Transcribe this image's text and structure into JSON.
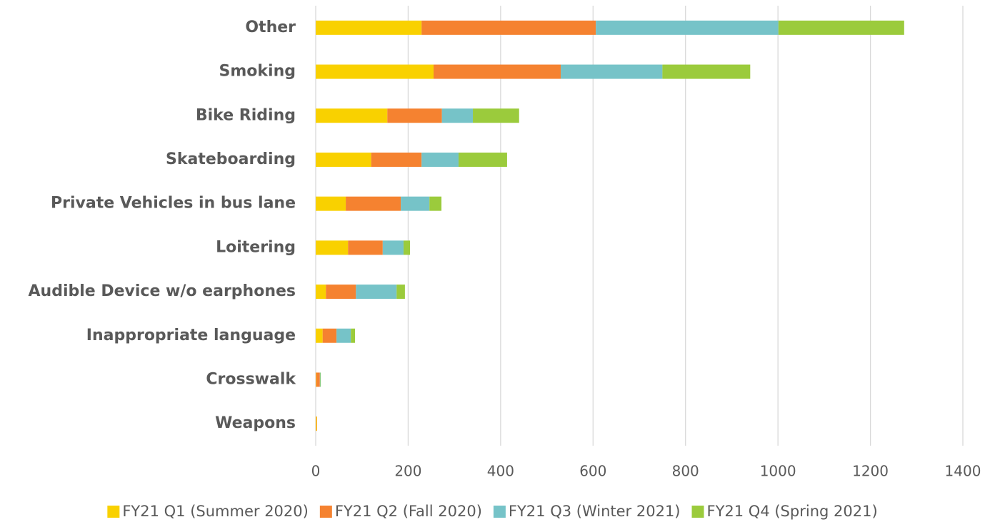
{
  "chart_data": {
    "type": "bar",
    "orientation": "horizontal",
    "stacked": true,
    "categories": [
      "Other",
      "Smoking",
      "Bike Riding",
      "Skateboarding",
      "Private Vehicles in bus lane",
      "Loitering",
      "Audible Device w/o earphones",
      "Inappropriate language",
      "Crosswalk",
      "Weapons"
    ],
    "series": [
      {
        "name": "FY21 Q1 (Summer 2020)",
        "color": "#f9d100",
        "values": [
          229,
          255,
          155,
          120,
          65,
          70,
          22,
          15,
          1,
          2
        ]
      },
      {
        "name": "FY21 Q2 (Fall 2020)",
        "color": "#f58230",
        "values": [
          377,
          275,
          118,
          109,
          119,
          75,
          65,
          30,
          8,
          1
        ]
      },
      {
        "name": "FY21 Q3 (Winter 2021)",
        "color": "#76c3c8",
        "values": [
          395,
          220,
          67,
          80,
          62,
          45,
          88,
          31,
          1,
          0
        ]
      },
      {
        "name": "FY21 Q4 (Spring 2021)",
        "color": "#9bcb3c",
        "values": [
          272,
          190,
          100,
          105,
          26,
          14,
          18,
          9,
          1,
          0
        ]
      }
    ],
    "xlim": [
      0,
      1400
    ],
    "xticks": [
      0,
      200,
      400,
      600,
      800,
      1000,
      1200,
      1400
    ],
    "grid": true,
    "legend": "bottom"
  }
}
